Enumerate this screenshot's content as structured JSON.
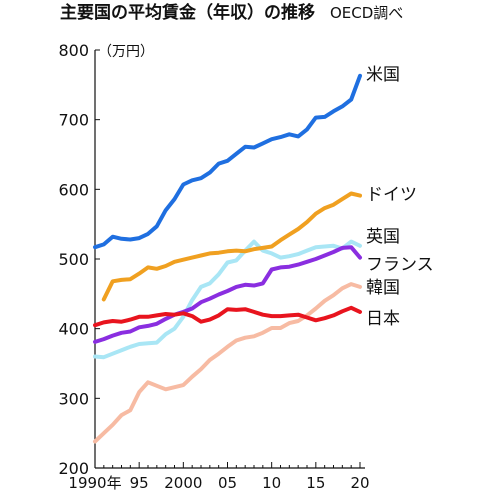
{
  "chart_data": {
    "type": "line",
    "title": "主要国の平均賃金（年収）の推移",
    "source": "OECD調べ",
    "ylabel": "（万円）",
    "xlabel": "",
    "ylim": [
      200,
      800
    ],
    "xlim": [
      1990,
      2020
    ],
    "yticks": [
      200,
      300,
      400,
      500,
      600,
      700,
      800
    ],
    "xticks": [
      {
        "value": 1990,
        "label": "1990年"
      },
      {
        "value": 1995,
        "label": "95"
      },
      {
        "value": 2000,
        "label": "2000"
      },
      {
        "value": 2005,
        "label": "05"
      },
      {
        "value": 2010,
        "label": "10"
      },
      {
        "value": 2015,
        "label": "15"
      },
      {
        "value": 2020,
        "label": "20"
      }
    ],
    "x": [
      1990,
      1991,
      1992,
      1993,
      1994,
      1995,
      1996,
      1997,
      1998,
      1999,
      2000,
      2001,
      2002,
      2003,
      2004,
      2005,
      2006,
      2007,
      2008,
      2009,
      2010,
      2011,
      2012,
      2013,
      2014,
      2015,
      2016,
      2017,
      2018,
      2019,
      2020
    ],
    "legend_placement": "right, at line ends",
    "series": [
      {
        "name": "米国",
        "color": "#1f6fe0",
        "values": [
          517,
          521,
          532,
          529,
          528,
          530,
          536,
          547,
          570,
          586,
          607,
          613,
          616,
          624,
          637,
          641,
          651,
          661,
          660,
          666,
          672,
          675,
          679,
          676,
          686,
          703,
          704,
          712,
          719,
          729,
          763
        ]
      },
      {
        "name": "ドイツ",
        "color": "#f0a020",
        "values": [
          null,
          442,
          468,
          470,
          471,
          479,
          488,
          486,
          490,
          496,
          499,
          502,
          505,
          508,
          509,
          511,
          512,
          511,
          514,
          516,
          518,
          527,
          535,
          543,
          553,
          565,
          573,
          578,
          586,
          594,
          591
        ]
      },
      {
        "name": "英国",
        "color": "#a9e6f5",
        "values": [
          360,
          359,
          364,
          369,
          374,
          378,
          379,
          380,
          392,
          400,
          417,
          441,
          460,
          465,
          478,
          495,
          498,
          512,
          525,
          512,
          508,
          502,
          504,
          507,
          512,
          517,
          518,
          519,
          515,
          525,
          519
        ]
      },
      {
        "name": "フランス",
        "color": "#8a2ee0",
        "values": [
          381,
          385,
          390,
          394,
          396,
          402,
          404,
          407,
          414,
          420,
          424,
          429,
          438,
          443,
          449,
          454,
          460,
          463,
          462,
          465,
          485,
          488,
          489,
          492,
          496,
          500,
          505,
          510,
          516,
          517,
          502
        ]
      },
      {
        "name": "韓国",
        "color": "#f7bba3",
        "values": [
          238,
          250,
          262,
          276,
          283,
          309,
          323,
          318,
          313,
          316,
          319,
          331,
          342,
          355,
          364,
          374,
          383,
          387,
          389,
          394,
          401,
          401,
          408,
          411,
          419,
          429,
          440,
          448,
          458,
          464,
          460
        ]
      },
      {
        "name": "日本",
        "color": "#e8141e",
        "values": [
          405,
          409,
          411,
          410,
          413,
          417,
          417,
          419,
          421,
          420,
          422,
          418,
          410,
          413,
          419,
          428,
          427,
          428,
          424,
          420,
          418,
          418,
          419,
          420,
          416,
          412,
          415,
          419,
          425,
          430,
          424
        ]
      }
    ],
    "grid": false
  }
}
